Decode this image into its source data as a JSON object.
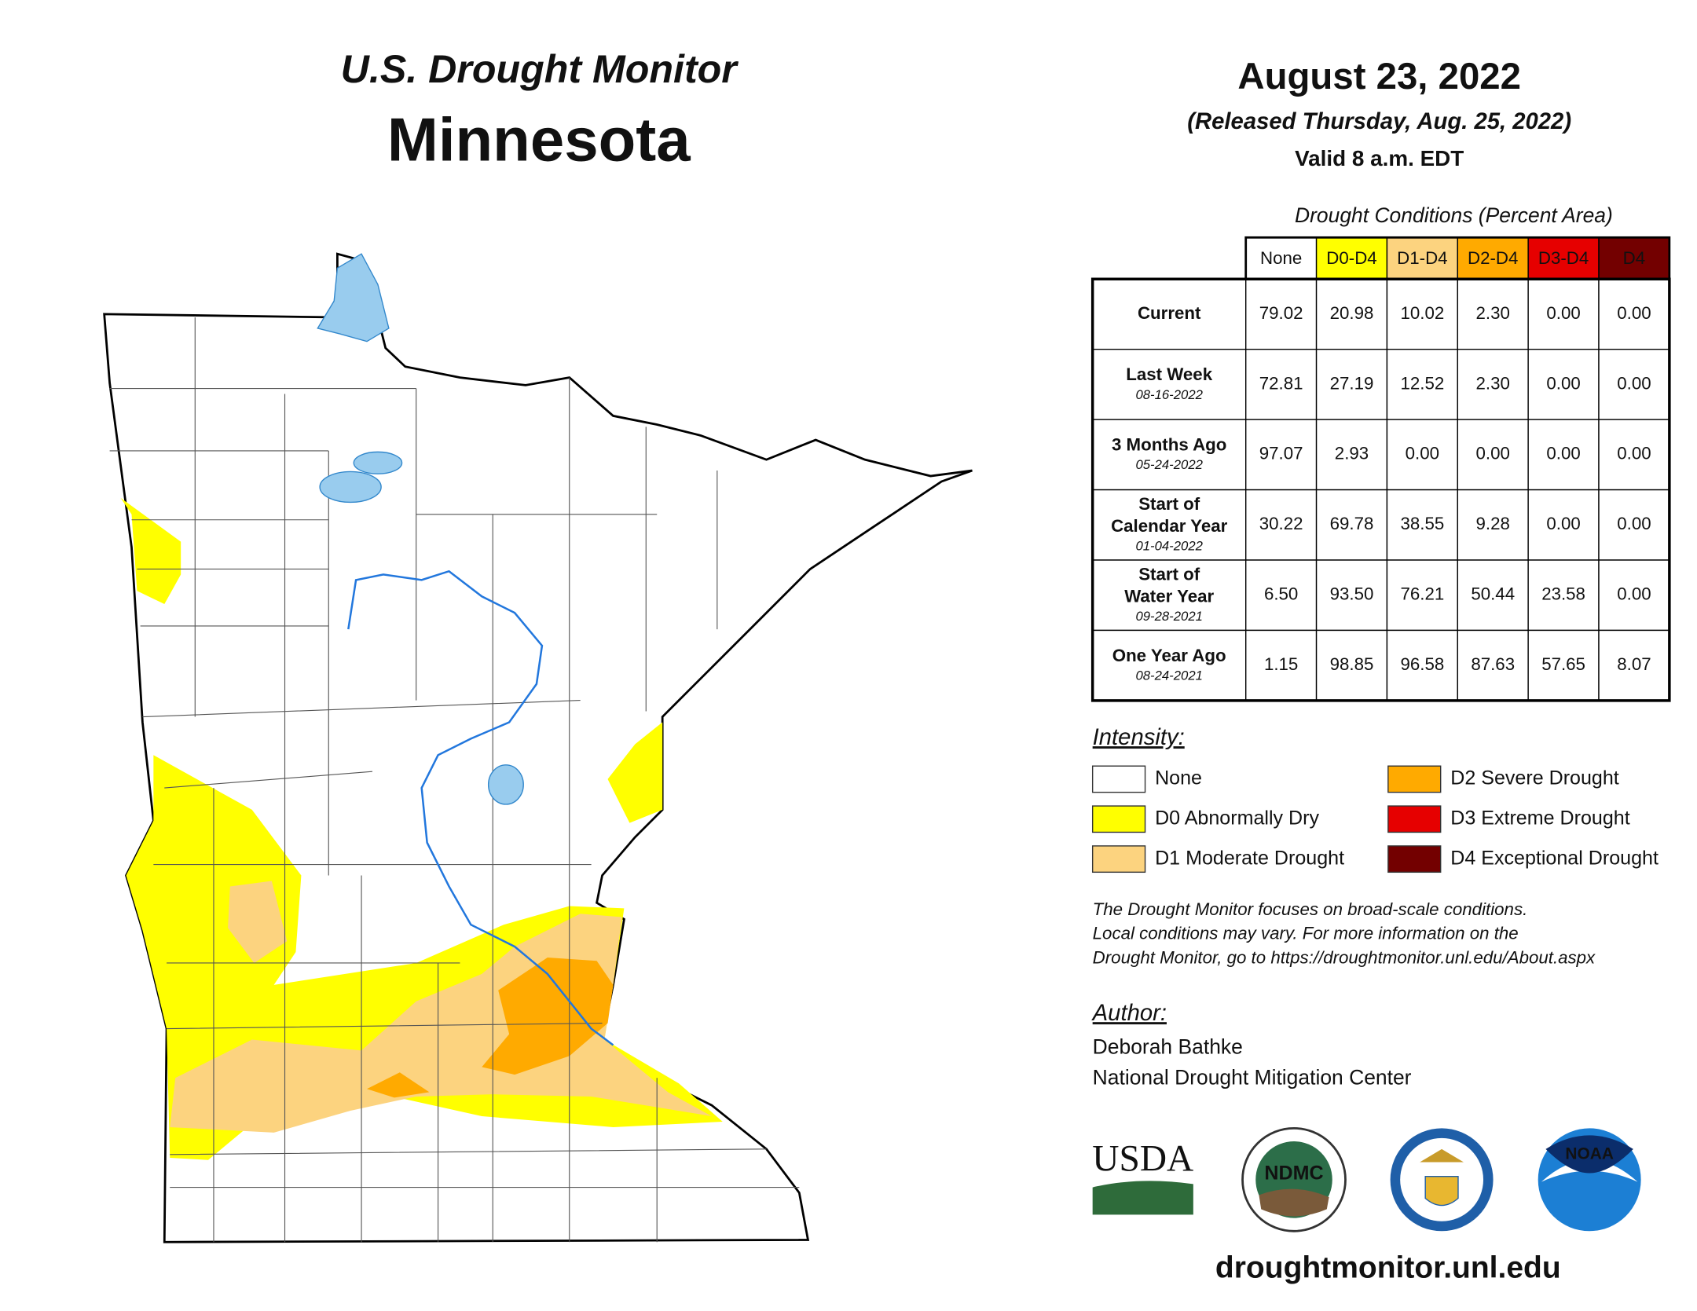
{
  "header": {
    "title": "U.S. Drought Monitor",
    "state": "Minnesota",
    "date": "August 23, 2022",
    "released": "(Released Thursday, Aug. 25, 2022)",
    "valid": "Valid 8 a.m. EDT"
  },
  "table": {
    "caption": "Drought Conditions (Percent Area)",
    "columns": [
      "None",
      "D0-D4",
      "D1-D4",
      "D2-D4",
      "D3-D4",
      "D4"
    ],
    "column_colors": [
      "#ffffff",
      "#ffff00",
      "#fcd37f",
      "#ffaa00",
      "#e60000",
      "#730000"
    ],
    "column_text_colors": [
      "#111111",
      "#111111",
      "#111111",
      "#111111",
      "#ffffff",
      "#ffffff"
    ],
    "rows": [
      {
        "label_lines": [
          "Current"
        ],
        "values": [
          "79.02",
          "20.98",
          "10.02",
          "2.30",
          "0.00",
          "0.00"
        ]
      },
      {
        "label_lines": [
          "Last Week"
        ],
        "date": "08-16-2022",
        "values": [
          "72.81",
          "27.19",
          "12.52",
          "2.30",
          "0.00",
          "0.00"
        ]
      },
      {
        "label_lines": [
          "3 Months Ago"
        ],
        "date": "05-24-2022",
        "values": [
          "97.07",
          "2.93",
          "0.00",
          "0.00",
          "0.00",
          "0.00"
        ]
      },
      {
        "label_lines": [
          "Start of",
          "Calendar Year"
        ],
        "date": "01-04-2022",
        "values": [
          "30.22",
          "69.78",
          "38.55",
          "9.28",
          "0.00",
          "0.00"
        ]
      },
      {
        "label_lines": [
          "Start of",
          "Water Year"
        ],
        "date": "09-28-2021",
        "values": [
          "6.50",
          "93.50",
          "76.21",
          "50.44",
          "23.58",
          "0.00"
        ]
      },
      {
        "label_lines": [
          "One Year Ago"
        ],
        "date": "08-24-2021",
        "values": [
          "1.15",
          "98.85",
          "96.58",
          "87.63",
          "57.65",
          "8.07"
        ]
      }
    ]
  },
  "legend": {
    "title": "Intensity:",
    "items": [
      {
        "label": "None",
        "color": "#ffffff"
      },
      {
        "label": "D0 Abnormally Dry",
        "color": "#ffff00"
      },
      {
        "label": "D1 Moderate Drought",
        "color": "#fcd37f"
      },
      {
        "label": "D2 Severe Drought",
        "color": "#ffaa00"
      },
      {
        "label": "D3 Extreme Drought",
        "color": "#e60000"
      },
      {
        "label": "D4 Exceptional Drought",
        "color": "#730000"
      }
    ]
  },
  "note": [
    "The Drought Monitor focuses on broad-scale conditions.",
    "Local conditions may vary. For more information on the",
    "Drought Monitor, go to https://droughtmonitor.unl.edu/About.aspx"
  ],
  "author": {
    "heading": "Author:",
    "name": "Deborah Bathke",
    "organization": "National Drought Mitigation Center"
  },
  "logos": [
    "USDA",
    "NDMC",
    "NOAA"
  ],
  "website": "droughtmonitor.unl.edu"
}
